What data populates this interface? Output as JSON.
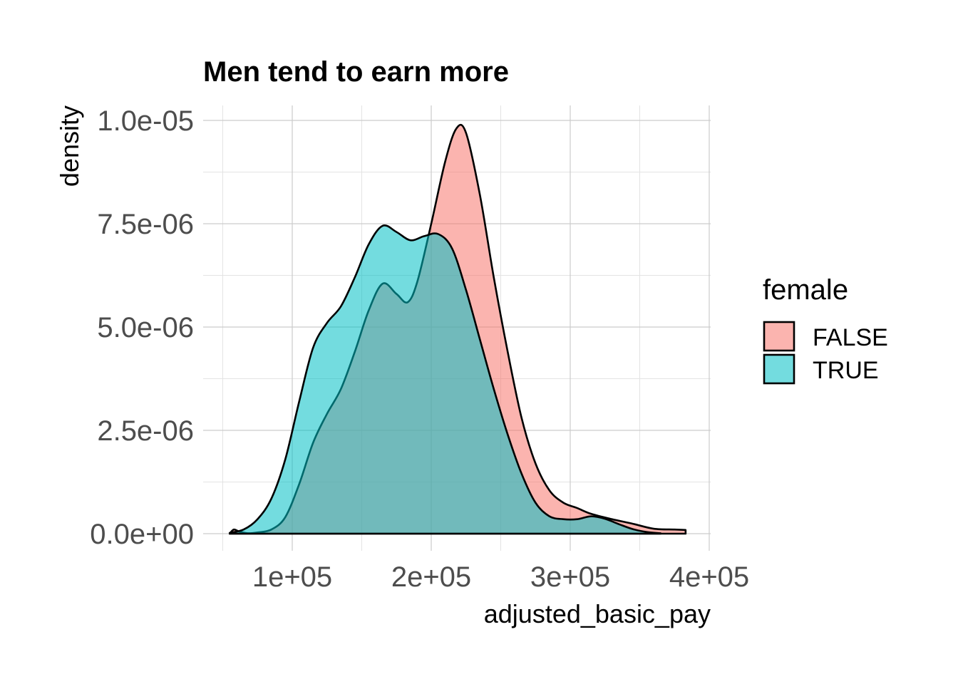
{
  "chart_data": {
    "type": "area",
    "title": "Men tend to earn more",
    "xlabel": "adjusted_basic_pay",
    "ylabel": "density",
    "xlim": [
      50000,
      400000
    ],
    "ylim": [
      0,
      1e-05
    ],
    "x_ticks": [
      {
        "value": 100000,
        "label": "1e+05"
      },
      {
        "value": 200000,
        "label": "2e+05"
      },
      {
        "value": 300000,
        "label": "3e+05"
      },
      {
        "value": 400000,
        "label": "4e+05"
      }
    ],
    "y_ticks": [
      {
        "value": 0,
        "label": "0.0e+00"
      },
      {
        "value": 2.5e-06,
        "label": "2.5e-06"
      },
      {
        "value": 5e-06,
        "label": "5.0e-06"
      },
      {
        "value": 7.5e-06,
        "label": "7.5e-06"
      },
      {
        "value": 1e-05,
        "label": "1.0e-05"
      }
    ],
    "grid": true,
    "legend": {
      "title": "female",
      "position": "right"
    },
    "series": [
      {
        "name": "FALSE",
        "color": "#F8766D",
        "points": [
          [
            55000,
            0.0
          ],
          [
            58000,
            1e-07
          ],
          [
            62000,
            5e-08
          ],
          [
            68000,
            1e-08
          ],
          [
            75000,
            3e-08
          ],
          [
            85000,
            1e-07
          ],
          [
            95000,
            4e-07
          ],
          [
            105000,
            1.2e-06
          ],
          [
            115000,
            2.2e-06
          ],
          [
            125000,
            2.9e-06
          ],
          [
            135000,
            3.5e-06
          ],
          [
            145000,
            4.4e-06
          ],
          [
            155000,
            5.4e-06
          ],
          [
            165000,
            6.05e-06
          ],
          [
            175000,
            5.8e-06
          ],
          [
            183000,
            5.6e-06
          ],
          [
            190000,
            6.1e-06
          ],
          [
            200000,
            7.5e-06
          ],
          [
            210000,
            9e-06
          ],
          [
            218000,
            9.8e-06
          ],
          [
            225000,
            9.7e-06
          ],
          [
            235000,
            8.2e-06
          ],
          [
            245000,
            6.2e-06
          ],
          [
            255000,
            4.4e-06
          ],
          [
            265000,
            2.8e-06
          ],
          [
            275000,
            1.7e-06
          ],
          [
            285000,
            1.05e-06
          ],
          [
            295000,
            7.5e-07
          ],
          [
            305000,
            6.2e-07
          ],
          [
            315000,
            4.8e-07
          ],
          [
            330000,
            3.5e-07
          ],
          [
            345000,
            2.4e-07
          ],
          [
            360000,
            1.2e-07
          ],
          [
            375000,
            1e-07
          ],
          [
            383000,
            9e-08
          ]
        ]
      },
      {
        "name": "TRUE",
        "color": "#00BFC4",
        "points": [
          [
            55000,
            2e-08
          ],
          [
            65000,
            1e-07
          ],
          [
            75000,
            3.5e-07
          ],
          [
            85000,
            8.5e-07
          ],
          [
            95000,
            1.8e-06
          ],
          [
            105000,
            3.2e-06
          ],
          [
            115000,
            4.5e-06
          ],
          [
            125000,
            5.1e-06
          ],
          [
            135000,
            5.5e-06
          ],
          [
            145000,
            6.2e-06
          ],
          [
            155000,
            7e-06
          ],
          [
            165000,
            7.45e-06
          ],
          [
            175000,
            7.3e-06
          ],
          [
            185000,
            7.1e-06
          ],
          [
            195000,
            7.2e-06
          ],
          [
            205000,
            7.25e-06
          ],
          [
            215000,
            6.9e-06
          ],
          [
            225000,
            5.9e-06
          ],
          [
            235000,
            4.7e-06
          ],
          [
            245000,
            3.5e-06
          ],
          [
            255000,
            2.4e-06
          ],
          [
            265000,
            1.45e-06
          ],
          [
            275000,
            7.5e-07
          ],
          [
            285000,
            4.2e-07
          ],
          [
            295000,
            3.5e-07
          ],
          [
            305000,
            3.5e-07
          ],
          [
            315000,
            4.2e-07
          ],
          [
            325000,
            3.6e-07
          ],
          [
            335000,
            2.3e-07
          ],
          [
            345000,
            1.1e-07
          ],
          [
            355000,
            4e-08
          ],
          [
            365000,
            1e-08
          ]
        ]
      }
    ]
  }
}
